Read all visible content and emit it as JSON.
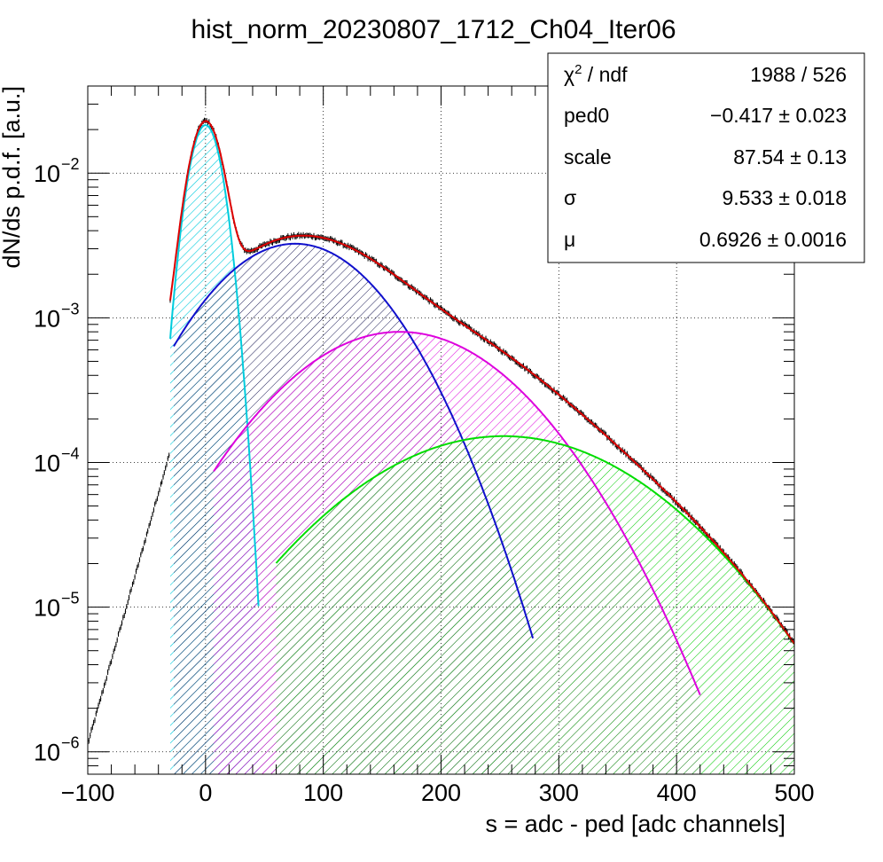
{
  "chart_data": {
    "type": "line",
    "title": "hist_norm_20230807_1712_Ch04_Iter06",
    "xlabel": "s = adc - ped [adc channels]",
    "ylabel": "dN/ds p.d.f. [a.u.]",
    "xlim": [
      -100,
      500
    ],
    "ylim": [
      7e-07,
      0.04
    ],
    "y_scale": "log",
    "grid": true,
    "x_ticks": [
      {
        "value": -100,
        "label": "−100"
      },
      {
        "value": 0,
        "label": "0"
      },
      {
        "value": 100,
        "label": "100"
      },
      {
        "value": 200,
        "label": "200"
      },
      {
        "value": 300,
        "label": "300"
      },
      {
        "value": 400,
        "label": "400"
      },
      {
        "value": 500,
        "label": "500"
      }
    ],
    "y_ticks": [
      {
        "value": 1e-06,
        "base": "10",
        "exp": "−6"
      },
      {
        "value": 1e-05,
        "base": "10",
        "exp": "−5"
      },
      {
        "value": 0.0001,
        "base": "10",
        "exp": "−4"
      },
      {
        "value": 0.001,
        "base": "10",
        "exp": "−3"
      },
      {
        "value": 0.01,
        "base": "10",
        "exp": "−2"
      }
    ],
    "series": [
      {
        "color": "#00ccdd",
        "fill": "hatch",
        "x_range": [
          -30,
          45
        ],
        "peak": {
          "x": 0,
          "y": 0.0215
        },
        "sigma": 9.53
      },
      {
        "color": "#1010cc",
        "fill": "hatch",
        "x_range": [
          -27,
          278
        ],
        "peak": {
          "x": 76,
          "y": 0.00325
        }
      },
      {
        "color": "#dd00dd",
        "fill": "hatch",
        "x_range": [
          7,
          420
        ],
        "peak": {
          "x": 165,
          "y": 0.0008
        }
      },
      {
        "color": "#00dd00",
        "fill": "hatch",
        "x_range": [
          60,
          500
        ],
        "peak": {
          "x": 253,
          "y": 0.000152
        }
      },
      {
        "color": "#dd0000",
        "fill": "none",
        "x_range": [
          -30,
          500
        ],
        "role": "total fit"
      },
      {
        "color": "#000000",
        "fill": "none",
        "x_range": [
          -100,
          500
        ],
        "role": "data histogram with error bars"
      }
    ],
    "stats_box": {
      "rows": [
        {
          "label": "χ",
          "label_sup": "2",
          "label_rest": " / ndf",
          "value": "1988 / 526"
        },
        {
          "label": "ped0",
          "value": "−0.417 ± 0.023"
        },
        {
          "label": "scale",
          "value": "87.54 ± 0.13"
        },
        {
          "label": "σ",
          "value": "9.533 ± 0.018"
        },
        {
          "label": "μ",
          "value": "0.6926 ± 0.0016"
        }
      ]
    }
  }
}
